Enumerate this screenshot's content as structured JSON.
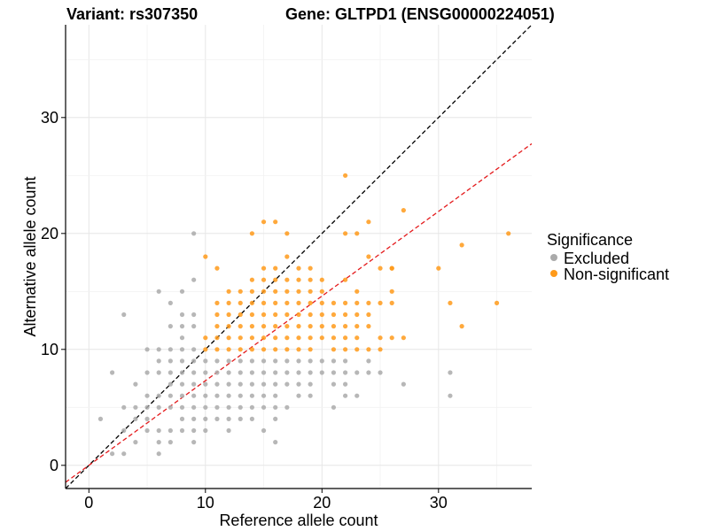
{
  "title_left": "Variant: rs307350",
  "title_right": "Gene: GLTPD1 (ENSG00000224051)",
  "chart_data": {
    "type": "scatter",
    "xlabel": "Reference allele count",
    "ylabel": "Alternative allele count",
    "xlim": [
      -2,
      38
    ],
    "ylim": [
      -2,
      38
    ],
    "x_ticks": [
      0,
      10,
      20,
      30
    ],
    "y_ticks": [
      0,
      10,
      20,
      30
    ],
    "grid": true,
    "legend": {
      "title": "Significance",
      "placement": "right"
    },
    "reference_lines": [
      {
        "name": "identity",
        "slope": 1.0,
        "intercept": 0,
        "color": "#000000",
        "dash": "dashed"
      },
      {
        "name": "fit",
        "slope": 0.73,
        "intercept": 0,
        "color": "#e41a1c",
        "dash": "dashed"
      }
    ],
    "series": [
      {
        "name": "Excluded",
        "color": "#aaaaaa",
        "points": [
          [
            1,
            4
          ],
          [
            2,
            1
          ],
          [
            2,
            8
          ],
          [
            3,
            1
          ],
          [
            3,
            3
          ],
          [
            3,
            5
          ],
          [
            3,
            13
          ],
          [
            4,
            2
          ],
          [
            4,
            4
          ],
          [
            4,
            5
          ],
          [
            4,
            7
          ],
          [
            5,
            3
          ],
          [
            5,
            4
          ],
          [
            5,
            5
          ],
          [
            5,
            6
          ],
          [
            5,
            8
          ],
          [
            5,
            10
          ],
          [
            6,
            1
          ],
          [
            6,
            2
          ],
          [
            6,
            3
          ],
          [
            6,
            5
          ],
          [
            6,
            6
          ],
          [
            6,
            8
          ],
          [
            6,
            9
          ],
          [
            6,
            10
          ],
          [
            6,
            15
          ],
          [
            7,
            2
          ],
          [
            7,
            3
          ],
          [
            7,
            5
          ],
          [
            7,
            6
          ],
          [
            7,
            7
          ],
          [
            7,
            8
          ],
          [
            7,
            9
          ],
          [
            7,
            10
          ],
          [
            7,
            12
          ],
          [
            7,
            14
          ],
          [
            8,
            3
          ],
          [
            8,
            4
          ],
          [
            8,
            5
          ],
          [
            8,
            6
          ],
          [
            8,
            7
          ],
          [
            8,
            8
          ],
          [
            8,
            9
          ],
          [
            8,
            10
          ],
          [
            8,
            11
          ],
          [
            8,
            12
          ],
          [
            8,
            13
          ],
          [
            8,
            15
          ],
          [
            9,
            2
          ],
          [
            9,
            3
          ],
          [
            9,
            4
          ],
          [
            9,
            5
          ],
          [
            9,
            6
          ],
          [
            9,
            7
          ],
          [
            9,
            8
          ],
          [
            9,
            9
          ],
          [
            9,
            10
          ],
          [
            9,
            12
          ],
          [
            9,
            13
          ],
          [
            9,
            16
          ],
          [
            9,
            20
          ],
          [
            10,
            3
          ],
          [
            10,
            4
          ],
          [
            10,
            5
          ],
          [
            10,
            6
          ],
          [
            10,
            7
          ],
          [
            10,
            8
          ],
          [
            10,
            9
          ],
          [
            11,
            4
          ],
          [
            11,
            5
          ],
          [
            11,
            6
          ],
          [
            11,
            7
          ],
          [
            11,
            8
          ],
          [
            11,
            9
          ],
          [
            12,
            3
          ],
          [
            12,
            4
          ],
          [
            12,
            5
          ],
          [
            12,
            6
          ],
          [
            12,
            7
          ],
          [
            12,
            8
          ],
          [
            12,
            9
          ],
          [
            13,
            4
          ],
          [
            13,
            5
          ],
          [
            13,
            6
          ],
          [
            13,
            7
          ],
          [
            13,
            8
          ],
          [
            13,
            9
          ],
          [
            14,
            4
          ],
          [
            14,
            5
          ],
          [
            14,
            6
          ],
          [
            14,
            7
          ],
          [
            14,
            8
          ],
          [
            14,
            9
          ],
          [
            15,
            3
          ],
          [
            15,
            5
          ],
          [
            15,
            6
          ],
          [
            15,
            7
          ],
          [
            15,
            8
          ],
          [
            15,
            9
          ],
          [
            16,
            2
          ],
          [
            16,
            4
          ],
          [
            16,
            5
          ],
          [
            16,
            6
          ],
          [
            16,
            7
          ],
          [
            16,
            8
          ],
          [
            16,
            9
          ],
          [
            17,
            5
          ],
          [
            17,
            7
          ],
          [
            17,
            8
          ],
          [
            17,
            9
          ],
          [
            18,
            6
          ],
          [
            18,
            7
          ],
          [
            18,
            8
          ],
          [
            18,
            9
          ],
          [
            19,
            6
          ],
          [
            19,
            7
          ],
          [
            19,
            8
          ],
          [
            19,
            9
          ],
          [
            20,
            8
          ],
          [
            20,
            9
          ],
          [
            21,
            5
          ],
          [
            21,
            7
          ],
          [
            21,
            8
          ],
          [
            21,
            9
          ],
          [
            22,
            6
          ],
          [
            22,
            7
          ],
          [
            22,
            8
          ],
          [
            22,
            9
          ],
          [
            23,
            8
          ],
          [
            23,
            6
          ],
          [
            24,
            8
          ],
          [
            24,
            9
          ],
          [
            25,
            8
          ],
          [
            27,
            7
          ],
          [
            31,
            6
          ],
          [
            31,
            8
          ]
        ]
      },
      {
        "name": "Non-significant",
        "color": "#ff9a1a",
        "points": [
          [
            10,
            10
          ],
          [
            10,
            11
          ],
          [
            10,
            18
          ],
          [
            11,
            10
          ],
          [
            11,
            11
          ],
          [
            11,
            12
          ],
          [
            11,
            13
          ],
          [
            11,
            14
          ],
          [
            11,
            17
          ],
          [
            12,
            10
          ],
          [
            12,
            11
          ],
          [
            12,
            12
          ],
          [
            12,
            13
          ],
          [
            12,
            14
          ],
          [
            12,
            15
          ],
          [
            13,
            10
          ],
          [
            13,
            11
          ],
          [
            13,
            12
          ],
          [
            13,
            13
          ],
          [
            13,
            14
          ],
          [
            13,
            15
          ],
          [
            14,
            10
          ],
          [
            14,
            11
          ],
          [
            14,
            12
          ],
          [
            14,
            13
          ],
          [
            14,
            14
          ],
          [
            14,
            15
          ],
          [
            14,
            16
          ],
          [
            14,
            20
          ],
          [
            15,
            10
          ],
          [
            15,
            11
          ],
          [
            15,
            12
          ],
          [
            15,
            13
          ],
          [
            15,
            14
          ],
          [
            15,
            15
          ],
          [
            15,
            16
          ],
          [
            15,
            17
          ],
          [
            15,
            21
          ],
          [
            16,
            10
          ],
          [
            16,
            11
          ],
          [
            16,
            12
          ],
          [
            16,
            13
          ],
          [
            16,
            14
          ],
          [
            16,
            15
          ],
          [
            16,
            16
          ],
          [
            16,
            17
          ],
          [
            16,
            21
          ],
          [
            17,
            10
          ],
          [
            17,
            11
          ],
          [
            17,
            12
          ],
          [
            17,
            13
          ],
          [
            17,
            14
          ],
          [
            17,
            15
          ],
          [
            17,
            16
          ],
          [
            17,
            18
          ],
          [
            17,
            20
          ],
          [
            18,
            10
          ],
          [
            18,
            11
          ],
          [
            18,
            12
          ],
          [
            18,
            13
          ],
          [
            18,
            14
          ],
          [
            18,
            15
          ],
          [
            18,
            16
          ],
          [
            18,
            17
          ],
          [
            19,
            10
          ],
          [
            19,
            11
          ],
          [
            19,
            12
          ],
          [
            19,
            13
          ],
          [
            19,
            14
          ],
          [
            19,
            15
          ],
          [
            19,
            16
          ],
          [
            19,
            17
          ],
          [
            20,
            11
          ],
          [
            20,
            12
          ],
          [
            20,
            13
          ],
          [
            20,
            14
          ],
          [
            20,
            15
          ],
          [
            20,
            16
          ],
          [
            21,
            10
          ],
          [
            21,
            11
          ],
          [
            21,
            12
          ],
          [
            21,
            13
          ],
          [
            21,
            14
          ],
          [
            22,
            10
          ],
          [
            22,
            11
          ],
          [
            22,
            12
          ],
          [
            22,
            13
          ],
          [
            22,
            14
          ],
          [
            22,
            16
          ],
          [
            22,
            20
          ],
          [
            22,
            25
          ],
          [
            23,
            10
          ],
          [
            23,
            11
          ],
          [
            23,
            12
          ],
          [
            23,
            13
          ],
          [
            23,
            14
          ],
          [
            23,
            15
          ],
          [
            23,
            20
          ],
          [
            24,
            10
          ],
          [
            24,
            12
          ],
          [
            24,
            13
          ],
          [
            24,
            14
          ],
          [
            24,
            18
          ],
          [
            24,
            21
          ],
          [
            25,
            10
          ],
          [
            25,
            11
          ],
          [
            25,
            14
          ],
          [
            25,
            17
          ],
          [
            26,
            11
          ],
          [
            26,
            14
          ],
          [
            26,
            15
          ],
          [
            26,
            17
          ],
          [
            26,
            17
          ],
          [
            27,
            11
          ],
          [
            27,
            22
          ],
          [
            30,
            17
          ],
          [
            31,
            14
          ],
          [
            32,
            12
          ],
          [
            32,
            19
          ],
          [
            35,
            14
          ],
          [
            36,
            20
          ]
        ]
      }
    ]
  }
}
